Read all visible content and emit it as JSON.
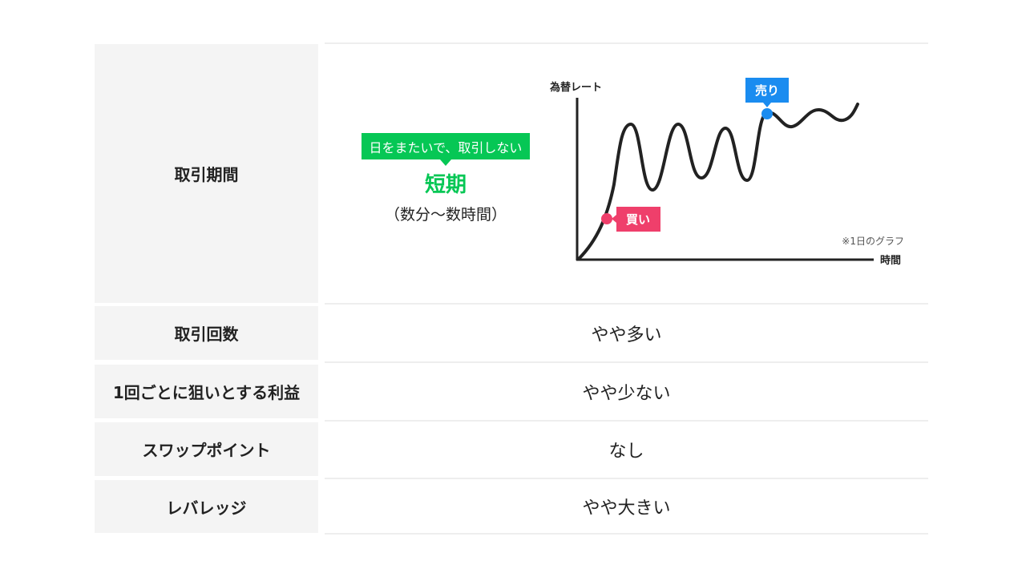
{
  "rows": [
    {
      "label": "取引期間"
    },
    {
      "label": "取引回数",
      "value": "やや多い"
    },
    {
      "label": "1回ごとに狙いとする利益",
      "value": "やや少ない"
    },
    {
      "label": "スワップポイント",
      "value": "なし"
    },
    {
      "label": "レバレッジ",
      "value": "やや大きい"
    }
  ],
  "period": {
    "badge": "日をまたいで、取引しない",
    "term": "短期",
    "range": "（数分～数時間）"
  },
  "graph": {
    "y_axis_label": "為替レート",
    "x_axis_label": "時間",
    "buy_label": "買い",
    "sell_label": "売り",
    "note": "※1日のグラフ"
  },
  "colors": {
    "green": "#06c755",
    "buy": "#ef3f6b",
    "sell": "#1a8cf0",
    "label_bg": "#f4f4f4"
  }
}
